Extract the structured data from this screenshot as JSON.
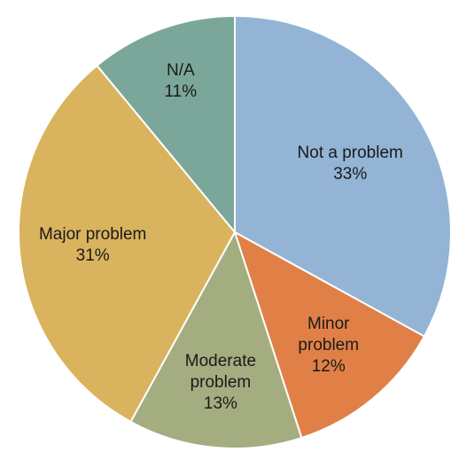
{
  "chart_data": {
    "type": "pie",
    "start_angle_deg": 0,
    "direction": "clockwise",
    "slices": [
      {
        "name": "not-a-problem",
        "label_lines": [
          "Not a problem"
        ],
        "pct_text": "33%",
        "value": 33,
        "color": "#93b4d4"
      },
      {
        "name": "minor-problem",
        "label_lines": [
          "Minor",
          "problem"
        ],
        "pct_text": "12%",
        "value": 12,
        "color": "#e08047"
      },
      {
        "name": "moderate-problem",
        "label_lines": [
          "Moderate",
          "problem"
        ],
        "pct_text": "13%",
        "value": 13,
        "color": "#a3ad80"
      },
      {
        "name": "major-problem",
        "label_lines": [
          "Major problem"
        ],
        "pct_text": "31%",
        "value": 31,
        "color": "#d9b35e"
      },
      {
        "name": "n-a",
        "label_lines": [
          "N/A"
        ],
        "pct_text": "11%",
        "value": 11,
        "color": "#7ba79b"
      }
    ]
  }
}
